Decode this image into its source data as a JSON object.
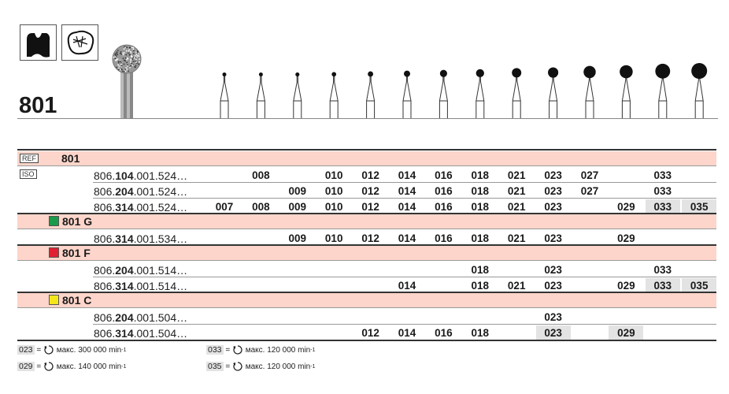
{
  "title": "801",
  "icons": [
    "tooth-crown-icon",
    "cavity-preparation-icon"
  ],
  "ref_tag": "REF",
  "iso_tag": "ISO",
  "ref_number": "801",
  "sizes": [
    "007",
    "008",
    "009",
    "010",
    "012",
    "014",
    "016",
    "018",
    "021",
    "023",
    "027",
    "029",
    "033",
    "035"
  ],
  "groups": [
    {
      "label": "801",
      "color": null,
      "rows": [
        {
          "ref": [
            "806.",
            "104",
            ".001.524…"
          ],
          "values": [
            "",
            "008",
            "",
            "010",
            "012",
            "014",
            "016",
            "018",
            "021",
            "023",
            "027",
            "",
            "033",
            ""
          ],
          "highlight": []
        },
        {
          "ref": [
            "806.",
            "204",
            ".001.524…"
          ],
          "values": [
            "",
            "",
            "009",
            "010",
            "012",
            "014",
            "016",
            "018",
            "021",
            "023",
            "027",
            "",
            "033",
            ""
          ],
          "highlight": []
        },
        {
          "ref": [
            "806.",
            "314",
            ".001.524…"
          ],
          "values": [
            "007",
            "008",
            "009",
            "010",
            "012",
            "014",
            "016",
            "018",
            "021",
            "023",
            "",
            "029",
            "033",
            "035"
          ],
          "highlight": [
            "033",
            "035"
          ]
        }
      ]
    },
    {
      "label": "801 G",
      "color": "#1a9a4a",
      "rows": [
        {
          "ref": [
            "806.",
            "314",
            ".001.534…"
          ],
          "values": [
            "",
            "",
            "009",
            "010",
            "012",
            "014",
            "016",
            "018",
            "021",
            "023",
            "",
            "029",
            "",
            ""
          ],
          "highlight": []
        }
      ]
    },
    {
      "label": "801 F",
      "color": "#e02030",
      "rows": [
        {
          "ref": [
            "806.",
            "204",
            ".001.514…"
          ],
          "values": [
            "",
            "",
            "",
            "",
            "",
            "",
            "",
            "018",
            "",
            "023",
            "",
            "",
            "033",
            ""
          ],
          "highlight": []
        },
        {
          "ref": [
            "806.",
            "314",
            ".001.514…"
          ],
          "values": [
            "",
            "",
            "",
            "",
            "",
            "014",
            "",
            "018",
            "021",
            "023",
            "",
            "029",
            "033",
            "035"
          ],
          "highlight": [
            "033",
            "035"
          ]
        }
      ]
    },
    {
      "label": "801 C",
      "color": "#f5e61a",
      "rows": [
        {
          "ref": [
            "806.",
            "204",
            ".001.504…"
          ],
          "values": [
            "",
            "",
            "",
            "",
            "",
            "",
            "",
            "",
            "",
            "023",
            "",
            "",
            "",
            ""
          ],
          "highlight": []
        },
        {
          "ref": [
            "806.",
            "314",
            ".001.504…"
          ],
          "values": [
            "",
            "",
            "",
            "",
            "012",
            "014",
            "016",
            "018",
            "",
            "023",
            "",
            "029",
            "",
            ""
          ],
          "highlight": [
            "023",
            "029"
          ]
        }
      ]
    }
  ],
  "legend": [
    {
      "num": "023",
      "eq": "=",
      "text": "макс. 300 000 min",
      "sup": "-1"
    },
    {
      "num": "033",
      "eq": "=",
      "text": "макс. 120 000 min",
      "sup": "-1"
    },
    {
      "num": "029",
      "eq": "=",
      "text": "макс. 140 000 min",
      "sup": "-1"
    },
    {
      "num": "035",
      "eq": "=",
      "text": "макс. 120 000 min",
      "sup": "-1"
    }
  ],
  "colors": {
    "band": "#fdd5ca",
    "highlight": "#e3e3e3"
  }
}
